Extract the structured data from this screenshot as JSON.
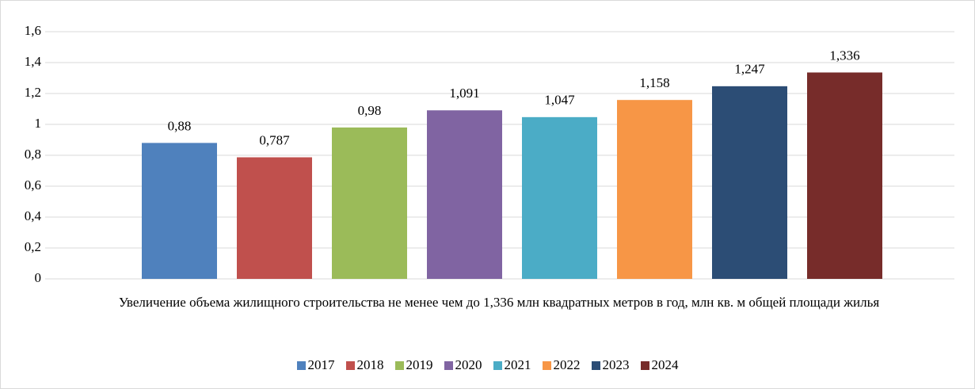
{
  "chart_data": {
    "type": "bar",
    "categories": [
      "Увеличение объема жилищного строительства не менее чем до 1,336 млн квадратных метров в год, млн кв. м общей площади жилья"
    ],
    "series": [
      {
        "name": "2017",
        "color": "#4f81bd",
        "values": [
          0.88
        ],
        "value_labels": [
          "0,88"
        ]
      },
      {
        "name": "2018",
        "color": "#c0504d",
        "values": [
          0.787
        ],
        "value_labels": [
          "0,787"
        ]
      },
      {
        "name": "2019",
        "color": "#9bbb59",
        "values": [
          0.98
        ],
        "value_labels": [
          "0,98"
        ]
      },
      {
        "name": "2020",
        "color": "#8064a2",
        "values": [
          1.091
        ],
        "value_labels": [
          "1,091"
        ]
      },
      {
        "name": "2021",
        "color": "#4bacc6",
        "values": [
          1.047
        ],
        "value_labels": [
          "1,047"
        ]
      },
      {
        "name": "2022",
        "color": "#f79646",
        "values": [
          1.158
        ],
        "value_labels": [
          "1,158"
        ]
      },
      {
        "name": "2023",
        "color": "#2c4d75",
        "values": [
          1.247
        ],
        "value_labels": [
          "1,247"
        ]
      },
      {
        "name": "2024",
        "color": "#772c2a",
        "values": [
          1.336
        ],
        "value_labels": [
          "1,336"
        ]
      }
    ],
    "ylim": [
      0,
      1.6
    ],
    "yticks": [
      0,
      {
        "value": 0.2,
        "label": "0,2"
      },
      {
        "value": 0.4,
        "label": "0,4"
      },
      {
        "value": 0.6,
        "label": "0,6"
      },
      {
        "value": 0.8,
        "label": "0,8"
      },
      1,
      {
        "value": 1.2,
        "label": "1,2"
      },
      {
        "value": 1.4,
        "label": "1,4"
      },
      {
        "value": 1.6,
        "label": "1,6"
      }
    ],
    "grid": true,
    "legend": "bottom"
  }
}
